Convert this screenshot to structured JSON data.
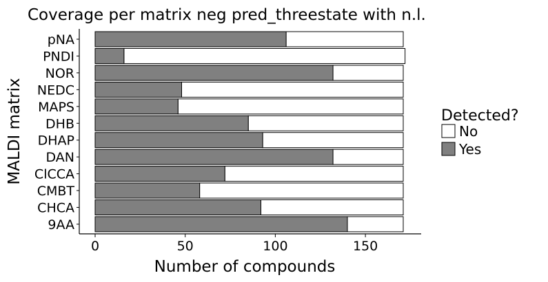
{
  "chart_data": {
    "type": "bar",
    "orientation": "horizontal",
    "stacked": true,
    "title": "Coverage per matrix neg pred_threestate with n.l.",
    "xlabel": "Number of compounds",
    "ylabel": "MALDI matrix",
    "xlim": [
      0,
      172
    ],
    "xticks": [
      0,
      50,
      100,
      150
    ],
    "grid": false,
    "legend_position": "right",
    "legend_title": "Detected?",
    "categories": [
      "pNA",
      "PNDI",
      "NOR",
      "NEDC",
      "MAPS",
      "DHB",
      "DHAP",
      "DAN",
      "ClCCA",
      "CMBT",
      "CHCA",
      "9AA"
    ],
    "series": [
      {
        "name": "No",
        "color": "#ffffff",
        "values": [
          65,
          156,
          39,
          123,
          125,
          86,
          78,
          39,
          99,
          113,
          79,
          31
        ]
      },
      {
        "name": "Yes",
        "color": "#808080",
        "values": [
          106,
          16,
          132,
          48,
          46,
          85,
          93,
          132,
          72,
          58,
          92,
          140
        ]
      }
    ]
  }
}
